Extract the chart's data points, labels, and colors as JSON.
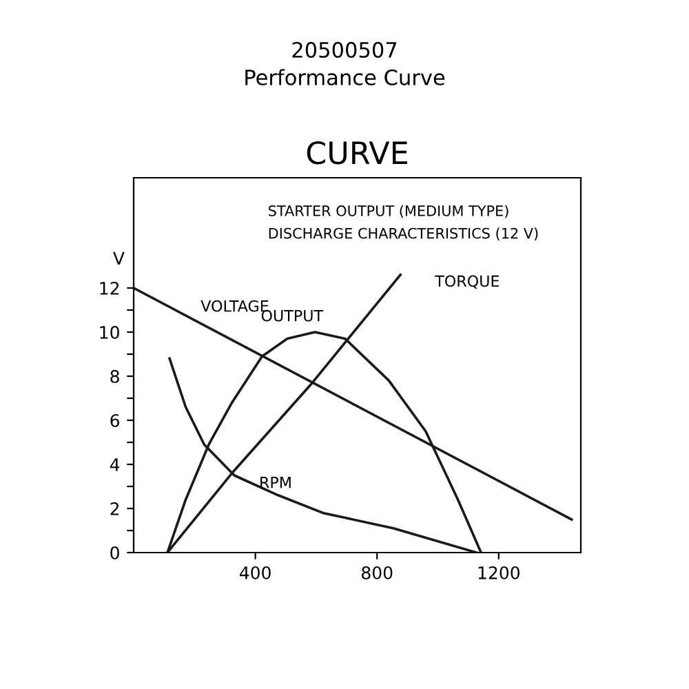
{
  "chart_data": {
    "type": "line",
    "title": "20500507",
    "subtitle": "Performance Curve",
    "ylabel": "V",
    "annotations": [
      "CURVE",
      "STARTER OUTPUT (MEDIUM TYPE)",
      "DISCHARGE CHARACTERISTICS (12 V)"
    ],
    "series": [
      {
        "name": "VOLTAGE",
        "color": "#1a1a1a",
        "x": [
          0,
          1440
        ],
        "values": [
          12,
          1.5
        ]
      },
      {
        "name": "OUTPUT",
        "color": "#1a1a1a",
        "x": [
          111,
          171,
          247,
          323,
          422,
          505,
          596,
          695,
          839,
          960,
          1066,
          1142
        ],
        "values": [
          0,
          2.4,
          4.9,
          6.8,
          8.9,
          9.7,
          10,
          9.7,
          7.8,
          5.5,
          2.4,
          0
        ]
      },
      {
        "name": "TORQUE",
        "color": "#1a1a1a",
        "x": [
          111,
          323,
          581,
          877
        ],
        "values": [
          0,
          3.6,
          7.6,
          12.6
        ]
      },
      {
        "name": "RPM",
        "color": "#1a1a1a",
        "x": [
          118,
          171,
          232,
          331,
          475,
          622,
          854,
          1127
        ],
        "values": [
          8.8,
          6.6,
          4.9,
          3.5,
          2.6,
          1.8,
          1.1,
          0
        ]
      }
    ],
    "xlim": [
      0,
      1470
    ],
    "ylim": [
      0,
      17
    ],
    "xticks": [
      400,
      800,
      1200
    ],
    "yticks": [
      0,
      {
        "value": 1,
        "label": null
      },
      2,
      {
        "value": 3,
        "label": null
      },
      4,
      {
        "value": 5,
        "label": null
      },
      6,
      {
        "value": 7,
        "label": null
      },
      8,
      {
        "value": 9,
        "label": null
      },
      10,
      {
        "value": 11,
        "label": null
      },
      12
    ],
    "grid": false,
    "legend": false,
    "marker": "none",
    "line_style": "solid"
  }
}
